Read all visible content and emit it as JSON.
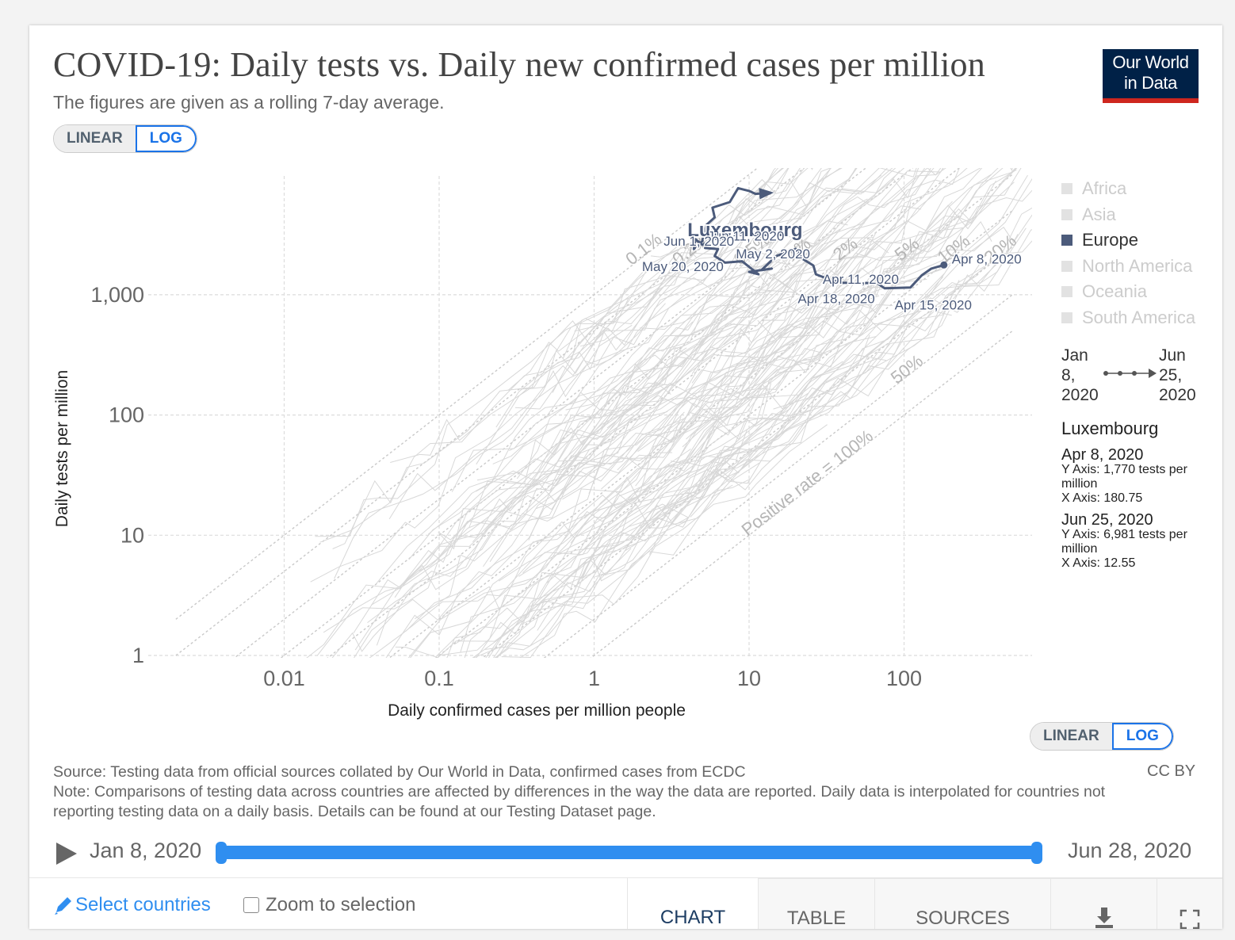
{
  "header": {
    "title": "COVID-19: Daily tests vs. Daily new confirmed cases per million",
    "subtitle": "The figures are given as a rolling 7-day average.",
    "logo_line1": "Our World",
    "logo_line2": "in Data"
  },
  "y_scale_toggle": {
    "linear": "LINEAR",
    "log": "LOG",
    "selected": "LOG"
  },
  "x_scale_toggle": {
    "linear": "LINEAR",
    "log": "LOG",
    "selected": "LOG"
  },
  "legend": {
    "items": [
      {
        "label": "Africa",
        "active": false
      },
      {
        "label": "Asia",
        "active": false
      },
      {
        "label": "Europe",
        "active": true
      },
      {
        "label": "North America",
        "active": false
      },
      {
        "label": "Oceania",
        "active": false
      },
      {
        "label": "South America",
        "active": false
      }
    ],
    "timeline_start": "Jan 8, 2020",
    "timeline_end": "Jun 25, 2020"
  },
  "info": {
    "country": "Luxembourg",
    "points": [
      {
        "date": "Apr 8, 2020",
        "y_text": "Y Axis: 1,770 tests per million",
        "x_text": "X Axis: 180.75"
      },
      {
        "date": "Jun 25, 2020",
        "y_text": "Y Axis: 6,981 tests per million",
        "x_text": "X Axis: 12.55"
      }
    ]
  },
  "footer_text": {
    "source": "Source: Testing data from official sources collated by Our World in Data, confirmed cases from ECDC",
    "note": "Note: Comparisons of testing data across countries are affected by differences in the way the data are reported. Daily data is interpolated for countries not reporting testing data on a daily basis. Details can be found at our Testing Dataset page.",
    "license": "CC BY"
  },
  "timeline": {
    "start": "Jan 8, 2020",
    "end": "Jun 28, 2020"
  },
  "controls": {
    "select_countries": "Select countries",
    "zoom_to_selection": "Zoom to selection",
    "tabs": [
      "CHART",
      "TABLE",
      "SOURCES"
    ],
    "active_tab": "CHART"
  },
  "colors": {
    "highlight": "#4c5b7b",
    "background_lines": "#d6d6d6",
    "accent": "#2f8ef0",
    "logo_bg": "#002147",
    "logo_bar": "#ce261e"
  },
  "chart_data": {
    "type": "scatter",
    "xlabel": "Daily confirmed cases per million people",
    "ylabel": "Daily tests per million",
    "x_scale": "log",
    "y_scale": "log",
    "x_ticks": [
      0.01,
      0.1,
      1,
      10,
      100
    ],
    "x_tick_labels": [
      "0.01",
      "0.1",
      "1",
      "10",
      "100"
    ],
    "y_ticks": [
      1,
      10,
      100,
      1000
    ],
    "y_tick_labels": [
      "1",
      "10",
      "100",
      "1,000"
    ],
    "xlim": [
      0.002,
      500
    ],
    "ylim": [
      1,
      20000
    ],
    "grid": true,
    "positive_rate_lines": [
      {
        "rate": 0.001,
        "label": "0.1%"
      },
      {
        "rate": 0.002,
        "label": "0.2%"
      },
      {
        "rate": 0.005,
        "label": "0.5%"
      },
      {
        "rate": 0.01,
        "label": "1%"
      },
      {
        "rate": 0.02,
        "label": "2%"
      },
      {
        "rate": 0.05,
        "label": "5%"
      },
      {
        "rate": 0.1,
        "label": "10%"
      },
      {
        "rate": 0.2,
        "label": "20%"
      },
      {
        "rate": 0.5,
        "label": "50%"
      },
      {
        "rate": 1.0,
        "label": "Positive rate = 100%"
      }
    ],
    "highlight_series": {
      "name": "Luxembourg",
      "points": [
        {
          "x": 180.75,
          "y": 1770,
          "label": "Apr 8, 2020"
        },
        {
          "x": 150,
          "y": 1650
        },
        {
          "x": 130,
          "y": 1450
        },
        {
          "x": 110,
          "y": 1150,
          "label": "Apr 15, 2020"
        },
        {
          "x": 75,
          "y": 1130
        },
        {
          "x": 67,
          "y": 1250
        },
        {
          "x": 40,
          "y": 1260
        },
        {
          "x": 33,
          "y": 1340,
          "label": "Apr 18, 2020"
        },
        {
          "x": 27,
          "y": 1480
        },
        {
          "x": 26,
          "y": 1750
        },
        {
          "x": 22,
          "y": 2000,
          "label": "May 2, 2020"
        },
        {
          "x": 20,
          "y": 2400,
          "label": "Apr 11, 2020"
        },
        {
          "x": 15,
          "y": 2100
        },
        {
          "x": 12,
          "y": 1600
        },
        {
          "x": 14,
          "y": 1650
        },
        {
          "x": 10,
          "y": 1550
        },
        {
          "x": 11.5,
          "y": 1480,
          "label": "May 20, 2020"
        },
        {
          "x": 9,
          "y": 1900
        },
        {
          "x": 7,
          "y": 1850
        },
        {
          "x": 6,
          "y": 2100
        },
        {
          "x": 6.3,
          "y": 2400
        },
        {
          "x": 5.2,
          "y": 2450
        },
        {
          "x": 5.5,
          "y": 2750,
          "label": "Jun 11, 2020"
        },
        {
          "x": 5,
          "y": 2600
        },
        {
          "x": 4.5,
          "y": 2900
        },
        {
          "x": 4.4,
          "y": 2400,
          "label": "Jun 1, 2020"
        },
        {
          "x": 5,
          "y": 2800
        },
        {
          "x": 5.3,
          "y": 3800
        },
        {
          "x": 6,
          "y": 4400
        },
        {
          "x": 5.8,
          "y": 5300
        },
        {
          "x": 7.5,
          "y": 5900
        },
        {
          "x": 8.5,
          "y": 7700
        },
        {
          "x": 10,
          "y": 7300
        },
        {
          "x": 11,
          "y": 6900
        },
        {
          "x": 12.55,
          "y": 6981,
          "label": "Jun 25, 2020"
        }
      ]
    }
  }
}
